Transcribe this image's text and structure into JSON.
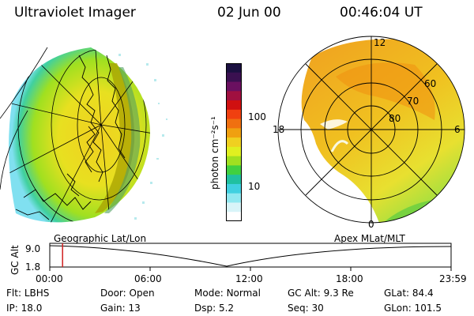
{
  "header": {
    "instrument": "Ultraviolet Imager",
    "date": "02 Jun 00",
    "time": "00:46:04 UT"
  },
  "colorbar": {
    "unit_label": "photon cm⁻²s⁻¹",
    "ticks": [
      "100",
      "10"
    ],
    "colors_top_to_bottom": [
      "#1a1040",
      "#3a1050",
      "#6a1060",
      "#a01040",
      "#d01010",
      "#f04010",
      "#f07010",
      "#f0a010",
      "#f0d020",
      "#e0f020",
      "#a0e020",
      "#40d040",
      "#20c0a0",
      "#40d0e0",
      "#90e8f0",
      "#d8f4f8",
      "#ffffff"
    ]
  },
  "left_panel": {
    "label": "Geographic Lat/Lon"
  },
  "right_panel": {
    "label": "Apex MLat/MLT",
    "lat_labels": [
      "60",
      "70",
      "80"
    ],
    "mlt_labels": {
      "top": "12",
      "left": "18",
      "right": "6",
      "bottom": "0"
    }
  },
  "altitude_plot": {
    "ylabel": "GC Alt",
    "yticks": [
      "9.0",
      "1.8"
    ],
    "xticks": [
      "00:00",
      "06:00",
      "12:00",
      "18:00",
      "23:59"
    ],
    "marker_time": "00:46",
    "marker_color": "#d02020"
  },
  "info": {
    "row1": [
      {
        "label": "Flt:",
        "value": "LBHS"
      },
      {
        "label": "Door:",
        "value": "Open"
      },
      {
        "label": "Mode:",
        "value": "Normal"
      },
      {
        "label": "GC Alt:",
        "value": "9.3 Re"
      },
      {
        "label": "GLat:",
        "value": "84.4"
      }
    ],
    "row2": [
      {
        "label": "IP:",
        "value": "18.0"
      },
      {
        "label": "Gain:",
        "value": "13"
      },
      {
        "label": "Dsp:",
        "value": "5.2"
      },
      {
        "label": "Seq:",
        "value": "30"
      },
      {
        "label": "GLon:",
        "value": "101.5"
      }
    ]
  }
}
